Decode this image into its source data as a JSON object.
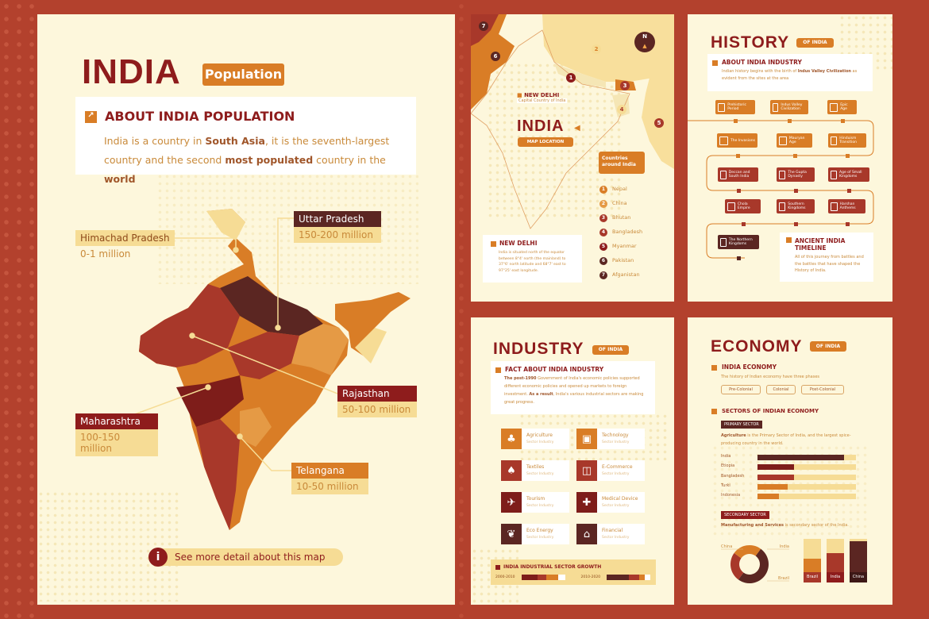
{
  "colors": {
    "bg": "#b3412d",
    "panel": "#fdf7dc",
    "dark_red": "#8e1c1c",
    "orange": "#d97d26",
    "brown": "#5b2622",
    "red": "#a8382a",
    "light": "#f6dc95"
  },
  "main": {
    "title": "INDIA",
    "badge": "Population",
    "about_title": "ABOUT INDIA POPULATION",
    "about_text": [
      "India is a country in ",
      "South Asia",
      ", it is the seventh-largest country and the second ",
      "most populated",
      " country in the ",
      "world"
    ],
    "labels": [
      {
        "region": "Himachad Pradesh",
        "value": "0-1 million"
      },
      {
        "region": "Uttar Pradesh",
        "value": "150-200 million"
      },
      {
        "region": "Rajasthan",
        "value": "50-100 million"
      },
      {
        "region": "Maharashtra",
        "value": "100-150 million"
      },
      {
        "region": "Telangana",
        "value": "10-50 million"
      }
    ],
    "more_link": "See more detail about this map",
    "info_icon": "i"
  },
  "map_panel": {
    "markers": [
      "7",
      "6",
      "2",
      "1",
      "3",
      "4",
      "5"
    ],
    "compass": "N",
    "capital_title": "NEW DELHI",
    "capital_sub": "Capital Country of India",
    "title": "INDIA",
    "subtitle": "MAP LOCATION",
    "countries_title": "Countries around India",
    "countries": [
      "Nepal",
      "China",
      "Bhutan",
      "Bangladesh",
      "Myanmar",
      "Pakistan",
      "Afganistan"
    ],
    "box_title": "NEW DELHI",
    "box_text": "India is situated north of the equator between 8°4' north (the mainland) to 37°6' north latitude and 68°7' east to 97°25' east longitude."
  },
  "history": {
    "title": "HISTORY",
    "badge": "OF INDIA",
    "about_title": "ABOUT INDIA INDUSTRY",
    "about_text": [
      "Indian history begins with the birth of ",
      "Indus Valley Civilization",
      " as evident from the sites at the area"
    ],
    "timeline": [
      "Prehistoric Period",
      "Indus Valley Civilization",
      "Epic Age",
      "The Invasions",
      "Mauryan Age",
      "Hinduism Transition",
      "Deccan and South India",
      "The Gupta Dynasty",
      "Age of Small Kingdoms",
      "Chola Empire",
      "Southern Kingdoms",
      "Harshan Anthems",
      "The Northern Kingdoms"
    ],
    "ancient_title": "ANCIENT INDIA TIMELINE",
    "ancient_text": "All of this journey from battles and the battles that have shaped the History of India."
  },
  "industry": {
    "title": "INDUSTRY",
    "badge": "OF INDIA",
    "fact_title": "FACT ABOUT INDIA INDUSTRY",
    "fact_text": [
      "The post-1990",
      " Government of India's economic policies supported different economic policies and opened up markets to foreign investment. ",
      "As a result",
      ", India's various industrial sectors are making great progress."
    ],
    "sectors": [
      {
        "name": "Agriculture",
        "sub": "Sector Industry",
        "icon": "farm-icon"
      },
      {
        "name": "Technology",
        "sub": "Sector Industry",
        "icon": "computer-icon"
      },
      {
        "name": "Textiles",
        "sub": "Sector Industry",
        "icon": "shirt-icon"
      },
      {
        "name": "E-Commerce",
        "sub": "Sector Industry",
        "icon": "cart-icon"
      },
      {
        "name": "Tourism",
        "sub": "Sector Industry",
        "icon": "plane-icon"
      },
      {
        "name": "Medical Device",
        "sub": "Sector Industry",
        "icon": "medical-icon"
      },
      {
        "name": "Eco Energy",
        "sub": "Sector Industry",
        "icon": "plant-icon"
      },
      {
        "name": "Financial",
        "sub": "Sector Industry",
        "icon": "bank-icon"
      }
    ],
    "growth_title": "INDIA INDUSTRIAL SECTOR GROWTH",
    "growth": [
      {
        "period": "2000-2010"
      },
      {
        "period": "2010-2020"
      }
    ]
  },
  "economy": {
    "title": "ECONOMY",
    "badge": "OF INDIA",
    "india_title": "INDIA ECONOMY",
    "india_text": "The history of Indian economy have three phases",
    "phases": [
      "Pre-Colonial",
      "Colonial",
      "Post-Colonial"
    ],
    "sectors_title": "SECTORS OF INDIAN ECONOMY",
    "primary_tag": "PRIMARY SECTOR",
    "primary_text": [
      "Agriculture",
      " is the Primary Sector of India, and the largest spice-producing country in the world."
    ],
    "secondary_tag": "SECONDARY SECTOR",
    "secondary_text": [
      "Manufacturing and Services",
      " is secondary sector of the India."
    ],
    "chart_data": [
      {
        "type": "bar",
        "orientation": "horizontal",
        "categories": [
          "India",
          "Etiopia",
          "Bangladesh",
          "Turki",
          "Indonesia"
        ],
        "values": [
          0.88,
          0.37,
          0.37,
          0.31,
          0.22
        ],
        "ylim": [
          0,
          1
        ]
      },
      {
        "type": "pie",
        "donut": true,
        "categories": [
          "China",
          "India",
          "Brazil"
        ],
        "values": [
          0.5,
          0.25,
          0.25
        ]
      },
      {
        "type": "bar",
        "categories": [
          "Brazil",
          "India",
          "China"
        ],
        "values": [
          0.55,
          0.68,
          0.94
        ],
        "ylim": [
          0,
          1
        ]
      }
    ]
  }
}
